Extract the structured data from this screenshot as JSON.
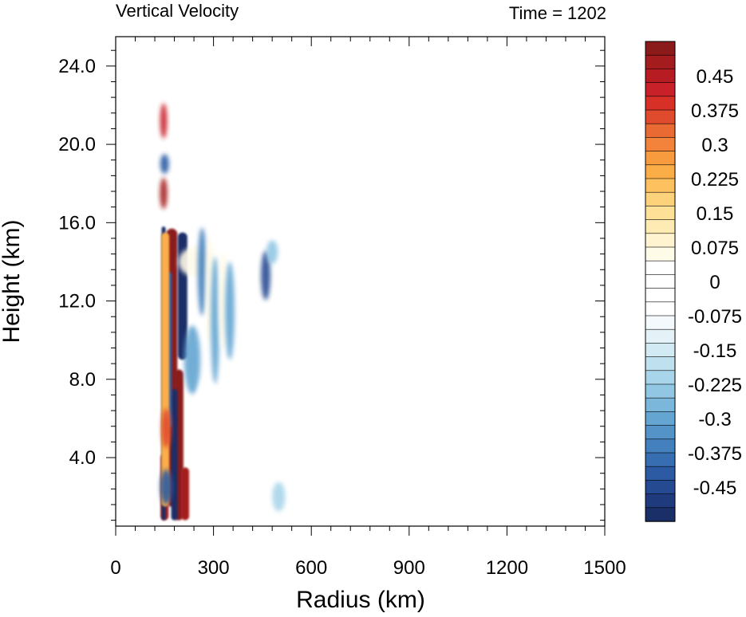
{
  "chart_data": {
    "type": "heatmap",
    "title": "Vertical Velocity",
    "subtitle": "Time = 1202",
    "xlabel": "Radius (km)",
    "ylabel": "Height (km)",
    "xlim": [
      0,
      1500
    ],
    "ylim": [
      0.5,
      25.5
    ],
    "x_ticks": [
      0,
      300,
      600,
      900,
      1200,
      1500
    ],
    "x_tick_labels": [
      "0",
      "300",
      "600",
      "900",
      "1200",
      "1500"
    ],
    "y_ticks": [
      4,
      8,
      12,
      16,
      20,
      24
    ],
    "y_tick_labels": [
      "4.0",
      "8.0",
      "12.0",
      "16.0",
      "20.0",
      "24.0"
    ],
    "colorbar": {
      "min": -0.525,
      "max": 0.525,
      "step": 0.025,
      "labels": [
        {
          "value": 0.45,
          "text": "0.45"
        },
        {
          "value": 0.375,
          "text": "0.375"
        },
        {
          "value": 0.3,
          "text": "0.3"
        },
        {
          "value": 0.225,
          "text": "0.225"
        },
        {
          "value": 0.15,
          "text": "0.15"
        },
        {
          "value": 0.075,
          "text": "0.075"
        },
        {
          "value": 0,
          "text": "0"
        },
        {
          "value": -0.075,
          "text": "-0.075"
        },
        {
          "value": -0.15,
          "text": "-0.15"
        },
        {
          "value": -0.225,
          "text": "-0.225"
        },
        {
          "value": -0.3,
          "text": "-0.3"
        },
        {
          "value": -0.375,
          "text": "-0.375"
        },
        {
          "value": -0.45,
          "text": "-0.45"
        }
      ],
      "colors_high_to_low": [
        "#8b1a1a",
        "#a51c1e",
        "#b71c22",
        "#c9212a",
        "#d73027",
        "#e04a2d",
        "#ea6a33",
        "#f3823a",
        "#f89a3e",
        "#fbae48",
        "#fdc25f",
        "#fdd27a",
        "#fee196",
        "#feebb3",
        "#fff4cf",
        "#fffbe9",
        "#ffffff",
        "#ffffff",
        "#ffffff",
        "#ffffff",
        "#f3f9fc",
        "#e4f2f8",
        "#d2eaf4",
        "#bfe1ef",
        "#a9d5ea",
        "#91c7e3",
        "#7ab7db",
        "#64a5d2",
        "#5393c8",
        "#4380bd",
        "#376db1",
        "#2c5ba3",
        "#254a92",
        "#1f3b7e",
        "#1a2f68"
      ]
    },
    "features": [
      {
        "kind": "band",
        "r": 172,
        "z0": 1.5,
        "z1": 15.7,
        "width": 14,
        "value": 0.55
      },
      {
        "kind": "band",
        "r": 193,
        "z0": 0.8,
        "z1": 8.5,
        "width": 12,
        "value": 0.52
      },
      {
        "kind": "band",
        "r": 150,
        "z0": 0.8,
        "z1": 4.2,
        "width": 10,
        "value": 0.5
      },
      {
        "kind": "band",
        "r": 213,
        "z0": 0.8,
        "z1": 3.5,
        "width": 10,
        "value": 0.5
      },
      {
        "kind": "band",
        "r": 205,
        "z0": 9.0,
        "z1": 15.5,
        "width": 12,
        "value": -0.4
      },
      {
        "kind": "band",
        "r": 180,
        "z0": 0.8,
        "z1": 7.5,
        "width": 8,
        "value": -0.35
      },
      {
        "kind": "band",
        "r": 160,
        "z0": 5.5,
        "z1": 13.5,
        "width": 10,
        "value": -0.25
      },
      {
        "kind": "band",
        "r": 147,
        "z0": 0.8,
        "z1": 15.8,
        "width": 5,
        "value": -0.45
      },
      {
        "kind": "band",
        "r": 152,
        "z0": 1.5,
        "z1": 15.5,
        "width": 10,
        "value": 0.3
      },
      {
        "kind": "blob",
        "r": 147,
        "z": 17.5,
        "w": 8,
        "h": 1.6,
        "value": 0.5
      },
      {
        "kind": "blob",
        "r": 147,
        "z": 21.2,
        "w": 7,
        "h": 1.8,
        "value": 0.45
      },
      {
        "kind": "blob",
        "r": 150,
        "z": 19.0,
        "w": 12,
        "h": 1.0,
        "value": -0.25
      },
      {
        "kind": "blob",
        "r": 155,
        "z": 5.5,
        "w": 14,
        "h": 2.0,
        "value": 0.4
      },
      {
        "kind": "blob",
        "r": 155,
        "z": 2.5,
        "w": 22,
        "h": 1.8,
        "value": -0.25
      },
      {
        "kind": "blob",
        "r": 245,
        "z": 14.0,
        "w": 90,
        "h": 1.5,
        "value": 0.15
      },
      {
        "kind": "blob",
        "r": 235,
        "z": 9.0,
        "w": 35,
        "h": 3.5,
        "value": -0.15
      },
      {
        "kind": "blob",
        "r": 265,
        "z": 13.5,
        "w": 12,
        "h": 4.5,
        "value": -0.2
      },
      {
        "kind": "blob",
        "r": 290,
        "z": 12.5,
        "w": 14,
        "h": 5.5,
        "value": 0.15
      },
      {
        "kind": "blob",
        "r": 305,
        "z": 11.0,
        "w": 12,
        "h": 6.5,
        "value": -0.15
      },
      {
        "kind": "blob",
        "r": 330,
        "z": 12.0,
        "w": 14,
        "h": 5.0,
        "value": 0.15
      },
      {
        "kind": "blob",
        "r": 350,
        "z": 11.5,
        "w": 14,
        "h": 5.0,
        "value": -0.15
      },
      {
        "kind": "blob",
        "r": 415,
        "z": 12.0,
        "w": 12,
        "h": 4.0,
        "value": 0.12
      },
      {
        "kind": "blob",
        "r": 460,
        "z": 13.3,
        "w": 14,
        "h": 2.5,
        "value": -0.3
      },
      {
        "kind": "blob",
        "r": 480,
        "z": 14.5,
        "w": 20,
        "h": 1.2,
        "value": -0.12
      },
      {
        "kind": "blob",
        "r": 515,
        "z": 9.0,
        "w": 12,
        "h": 2.5,
        "value": 0.1
      },
      {
        "kind": "blob",
        "r": 410,
        "z": 21.5,
        "w": 14,
        "h": 1.5,
        "value": 0.12
      },
      {
        "kind": "blob",
        "r": 460,
        "z": 20.5,
        "w": 16,
        "h": 1.3,
        "value": 0.1
      },
      {
        "kind": "blob",
        "r": 300,
        "z": 17.0,
        "w": 14,
        "h": 1.5,
        "value": 0.1
      },
      {
        "kind": "blob",
        "r": 400,
        "z": 18.5,
        "w": 16,
        "h": 2.0,
        "value": 0.1
      },
      {
        "kind": "blob",
        "r": 420,
        "z": 3.0,
        "w": 40,
        "h": 2.0,
        "value": 0.08
      },
      {
        "kind": "blob",
        "r": 280,
        "z": 7.0,
        "w": 40,
        "h": 2.0,
        "value": 0.1
      },
      {
        "kind": "blob",
        "r": 500,
        "z": 2.0,
        "w": 25,
        "h": 1.5,
        "value": -0.08
      }
    ]
  }
}
